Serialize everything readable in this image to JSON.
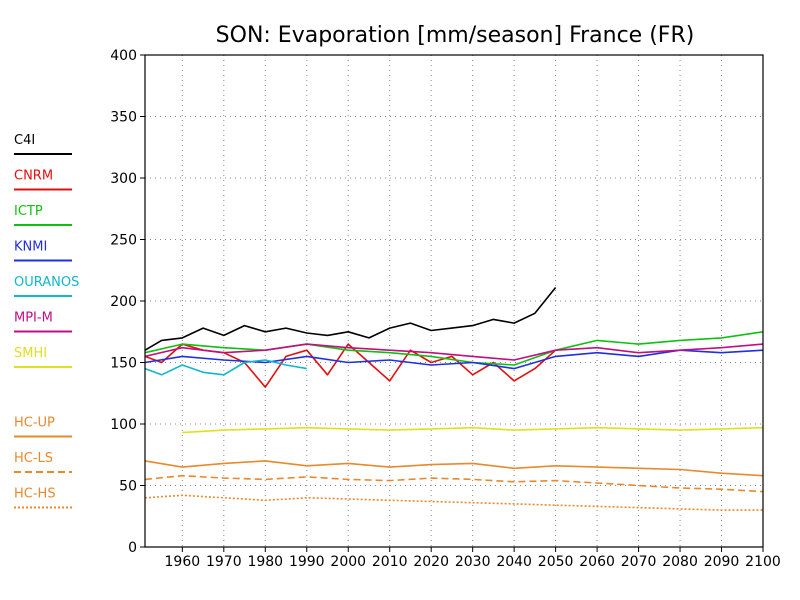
{
  "chart_data": {
    "type": "line",
    "title": "SON: Evaporation [mm/season] France (FR)",
    "xlabel": "",
    "ylabel": "",
    "xlim": [
      1951,
      2100
    ],
    "ylim": [
      0,
      400
    ],
    "xticks": [
      1960,
      1970,
      1980,
      1990,
      2000,
      2010,
      2020,
      2030,
      2040,
      2050,
      2060,
      2070,
      2080,
      2090,
      2100
    ],
    "yticks": [
      0,
      50,
      100,
      150,
      200,
      250,
      300,
      350,
      400
    ],
    "grid": true,
    "legend_position": "left",
    "series": [
      {
        "name": "C4I",
        "color": "#000000",
        "style": "solid",
        "x": [
          1951,
          1955,
          1960,
          1965,
          1970,
          1975,
          1980,
          1985,
          1990,
          1995,
          2000,
          2005,
          2010,
          2015,
          2020,
          2025,
          2030,
          2035,
          2040,
          2045,
          2050
        ],
        "values": [
          160,
          168,
          170,
          178,
          172,
          180,
          175,
          178,
          174,
          172,
          175,
          170,
          178,
          182,
          176,
          178,
          180,
          185,
          182,
          190,
          211
        ]
      },
      {
        "name": "CNRM",
        "color": "#e01010",
        "style": "solid",
        "x": [
          1951,
          1955,
          1960,
          1965,
          1970,
          1975,
          1980,
          1985,
          1990,
          1995,
          2000,
          2005,
          2010,
          2015,
          2020,
          2025,
          2030,
          2035,
          2040,
          2045,
          2050
        ],
        "values": [
          155,
          150,
          165,
          160,
          158,
          150,
          130,
          155,
          160,
          140,
          165,
          150,
          135,
          160,
          150,
          155,
          140,
          150,
          135,
          145,
          160
        ]
      },
      {
        "name": "ICTP",
        "color": "#10c010",
        "style": "solid",
        "x": [
          1951,
          1960,
          1970,
          1980,
          1990,
          2000,
          2010,
          2020,
          2030,
          2040,
          2050,
          2060,
          2070,
          2080,
          2090,
          2100
        ],
        "values": [
          158,
          165,
          162,
          160,
          165,
          160,
          158,
          155,
          150,
          148,
          160,
          168,
          165,
          168,
          170,
          175
        ]
      },
      {
        "name": "KNMI",
        "color": "#2030e0",
        "style": "solid",
        "x": [
          1951,
          1960,
          1970,
          1980,
          1990,
          2000,
          2010,
          2020,
          2030,
          2040,
          2050,
          2060,
          2070,
          2080,
          2090,
          2100
        ],
        "values": [
          150,
          155,
          152,
          150,
          155,
          150,
          152,
          148,
          150,
          145,
          155,
          158,
          155,
          160,
          158,
          160
        ]
      },
      {
        "name": "OURANOS",
        "color": "#10b8c8",
        "style": "solid",
        "x": [
          1951,
          1955,
          1960,
          1965,
          1970,
          1975,
          1980,
          1985,
          1990
        ],
        "values": [
          145,
          140,
          148,
          142,
          140,
          150,
          152,
          148,
          145
        ]
      },
      {
        "name": "MPI-M",
        "color": "#c01080",
        "style": "solid",
        "x": [
          1951,
          1960,
          1970,
          1980,
          1990,
          2000,
          2010,
          2020,
          2030,
          2040,
          2050,
          2060,
          2070,
          2080,
          2090,
          2100
        ],
        "values": [
          155,
          162,
          158,
          160,
          165,
          162,
          160,
          158,
          155,
          152,
          160,
          162,
          158,
          160,
          162,
          165
        ]
      },
      {
        "name": "SMHI",
        "color": "#e0e020",
        "style": "solid",
        "x": [
          1960,
          1970,
          1980,
          1990,
          2000,
          2010,
          2020,
          2030,
          2040,
          2050,
          2060,
          2070,
          2080,
          2090,
          2100
        ],
        "values": [
          93,
          95,
          96,
          97,
          96,
          95,
          96,
          97,
          95,
          96,
          97,
          96,
          95,
          96,
          97
        ]
      },
      {
        "name": "HC-UP",
        "color": "#e8892e",
        "style": "solid",
        "x": [
          1951,
          1960,
          1970,
          1980,
          1990,
          2000,
          2010,
          2020,
          2030,
          2040,
          2050,
          2060,
          2070,
          2080,
          2090,
          2100
        ],
        "values": [
          70,
          65,
          68,
          70,
          66,
          68,
          65,
          67,
          68,
          64,
          66,
          65,
          64,
          63,
          60,
          58
        ]
      },
      {
        "name": "HC-LS",
        "color": "#e8892e",
        "style": "dashed",
        "x": [
          1951,
          1960,
          1970,
          1980,
          1990,
          2000,
          2010,
          2020,
          2030,
          2040,
          2050,
          2060,
          2070,
          2080,
          2090,
          2100
        ],
        "values": [
          55,
          58,
          56,
          55,
          57,
          55,
          54,
          56,
          55,
          53,
          54,
          52,
          50,
          48,
          47,
          45
        ]
      },
      {
        "name": "HC-HS",
        "color": "#e8892e",
        "style": "dotted",
        "x": [
          1951,
          1960,
          1970,
          1980,
          1990,
          2000,
          2010,
          2020,
          2030,
          2040,
          2050,
          2060,
          2070,
          2080,
          2090,
          2100
        ],
        "values": [
          40,
          42,
          40,
          38,
          40,
          39,
          38,
          37,
          36,
          35,
          34,
          33,
          32,
          31,
          30,
          30
        ]
      }
    ]
  }
}
